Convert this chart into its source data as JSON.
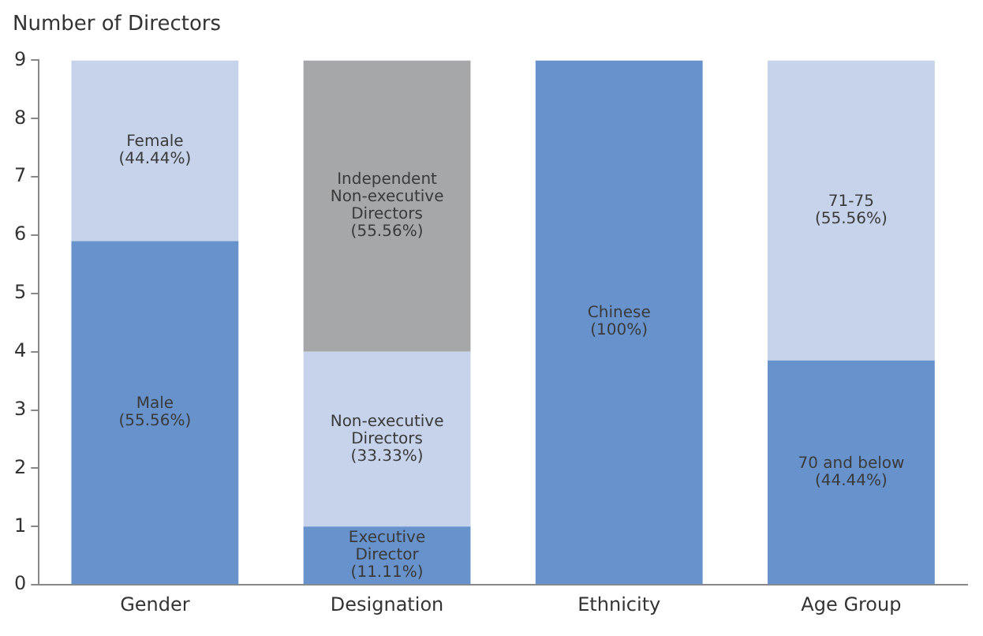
{
  "chart_data": {
    "type": "bar",
    "stacked": true,
    "ylabel": "Number of Directors",
    "categories": [
      "Gender",
      "Designation",
      "Ethnicity",
      "Age Group"
    ],
    "ylim": [
      0,
      9
    ],
    "yticks": [
      0,
      1,
      2,
      3,
      4,
      5,
      6,
      7,
      8,
      9
    ],
    "grid": false,
    "legend": false,
    "series": [
      {
        "name": "Male\n(55.56%)",
        "color": "#6792cc",
        "values": [
          5.9,
          null,
          null,
          null
        ]
      },
      {
        "name": "Female\n(44.44%)",
        "color": "#c6d3eb",
        "values": [
          3.1,
          null,
          null,
          null
        ]
      },
      {
        "name": "Executive\nDirector\n(11.11%)",
        "color": "#6792cc",
        "values": [
          null,
          1,
          null,
          null
        ]
      },
      {
        "name": "Non-executive\nDirectors\n(33.33%)",
        "color": "#c6d3eb",
        "values": [
          null,
          3,
          null,
          null
        ]
      },
      {
        "name": "Independent\nNon-executive\nDirectors\n(55.56%)",
        "color": "#a6a7a9",
        "values": [
          null,
          5,
          null,
          null
        ]
      },
      {
        "name": "Chinese\n(100%)",
        "color": "#6792cc",
        "values": [
          null,
          null,
          9,
          null
        ]
      },
      {
        "name": "70 and below\n(44.44%)",
        "color": "#6792cc",
        "values": [
          null,
          null,
          null,
          3.85
        ]
      },
      {
        "name": "71-75\n(55.56%)",
        "color": "#c6d3eb",
        "values": [
          null,
          null,
          null,
          5.15
        ]
      }
    ]
  }
}
